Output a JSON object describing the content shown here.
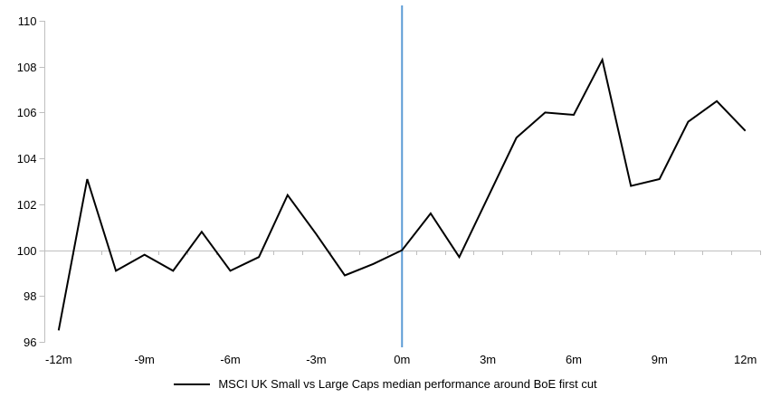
{
  "chart_data": {
    "type": "line",
    "title": "",
    "x_months": [
      -12,
      -11,
      -10,
      -9,
      -8,
      -7,
      -6,
      -5,
      -4,
      -3,
      -2,
      -1,
      0,
      1,
      2,
      3,
      4,
      5,
      6,
      7,
      8,
      9,
      10,
      11,
      12
    ],
    "series": [
      {
        "name": "MSCI UK Small vs Large Caps median performance around BoE first cut",
        "values": [
          96.5,
          103.1,
          99.1,
          99.8,
          99.1,
          100.8,
          99.1,
          99.7,
          102.4,
          100.7,
          98.9,
          99.4,
          100.0,
          101.6,
          99.7,
          102.3,
          104.9,
          106.0,
          105.9,
          108.3,
          102.8,
          103.1,
          105.6,
          106.5,
          105.2
        ]
      }
    ],
    "xtick_labels": [
      "-12m",
      "-9m",
      "-6m",
      "-3m",
      "0m",
      "3m",
      "6m",
      "9m",
      "12m"
    ],
    "xtick_months": [
      -12,
      -9,
      -6,
      -3,
      0,
      3,
      6,
      9,
      12
    ],
    "ytick_labels": [
      "96",
      "98",
      "100",
      "102",
      "104",
      "106",
      "108",
      "110"
    ],
    "yticks": [
      96,
      98,
      100,
      102,
      104,
      106,
      108,
      110
    ],
    "ylim": [
      96,
      110
    ],
    "baseline_value": 100,
    "event_line_month": 0,
    "grid": "baseline-only",
    "legend_position": "bottom-center",
    "colors": {
      "series_line": "#000000",
      "event_line": "#5B9BD5",
      "axis_line": "#BFBFBF",
      "label_text": "#000000",
      "background": "#FFFFFF"
    }
  }
}
